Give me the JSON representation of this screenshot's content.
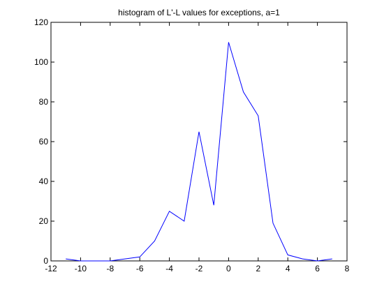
{
  "chart_data": {
    "type": "line",
    "title": "histogram of L'-L values for exceptions, a=1",
    "xlabel": "",
    "ylabel": "",
    "xlim": [
      -12,
      8
    ],
    "ylim": [
      0,
      120
    ],
    "xticks": [
      "-12",
      "-10",
      "-8",
      "-6",
      "-4",
      "-2",
      "0",
      "2",
      "4",
      "6",
      "8"
    ],
    "yticks": [
      "0",
      "20",
      "40",
      "60",
      "80",
      "100",
      "120"
    ],
    "grid": false,
    "legend": "none",
    "series": [
      {
        "color": "#0000ff",
        "x": [
          -11,
          -10,
          -9,
          -8,
          -7,
          -6,
          -5,
          -4,
          -3,
          -2,
          -1,
          0,
          1,
          2,
          3,
          4,
          5,
          6,
          7
        ],
        "y": [
          1,
          0,
          0,
          0,
          1,
          2,
          10,
          25,
          20,
          65,
          28,
          110,
          85,
          73,
          19,
          3,
          1,
          0,
          1
        ]
      }
    ]
  }
}
